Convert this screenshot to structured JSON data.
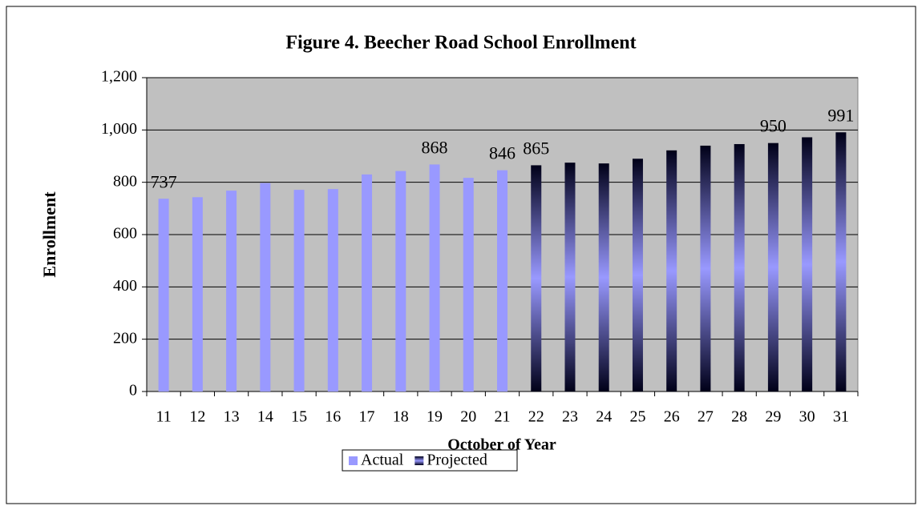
{
  "chart_data": {
    "type": "bar",
    "title": "Figure 4. Beecher Road School Enrollment",
    "x_label": "October of Year",
    "y_label": "Enrollment",
    "categories": [
      "11",
      "12",
      "13",
      "14",
      "15",
      "16",
      "17",
      "18",
      "19",
      "20",
      "21",
      "22",
      "23",
      "24",
      "25",
      "26",
      "27",
      "28",
      "29",
      "30",
      "31"
    ],
    "series": [
      {
        "name": "Actual",
        "color": "#9999ff",
        "values": [
          737,
          743,
          768,
          797,
          771,
          774,
          830,
          843,
          868,
          817,
          846,
          null,
          null,
          null,
          null,
          null,
          null,
          null,
          null,
          null,
          null
        ],
        "value_labels": [
          "737",
          null,
          null,
          null,
          null,
          null,
          null,
          null,
          "868",
          null,
          "846",
          null,
          null,
          null,
          null,
          null,
          null,
          null,
          null,
          null,
          null
        ]
      },
      {
        "name": "Projected",
        "color": "#9999ff",
        "values": [
          null,
          null,
          null,
          null,
          null,
          null,
          null,
          null,
          null,
          null,
          null,
          865,
          875,
          872,
          890,
          922,
          940,
          946,
          950,
          972,
          991
        ],
        "value_labels": [
          null,
          null,
          null,
          null,
          null,
          null,
          null,
          null,
          null,
          null,
          null,
          "865",
          null,
          null,
          null,
          null,
          null,
          null,
          "950",
          null,
          "991"
        ]
      }
    ],
    "ylim": [
      0,
      1200
    ],
    "yticks": [
      0,
      200,
      400,
      600,
      800,
      {
        "value": 1000,
        "label": "1,000"
      },
      {
        "value": 1200,
        "label": "1,200"
      }
    ],
    "grid": true,
    "legend": "bottom"
  }
}
